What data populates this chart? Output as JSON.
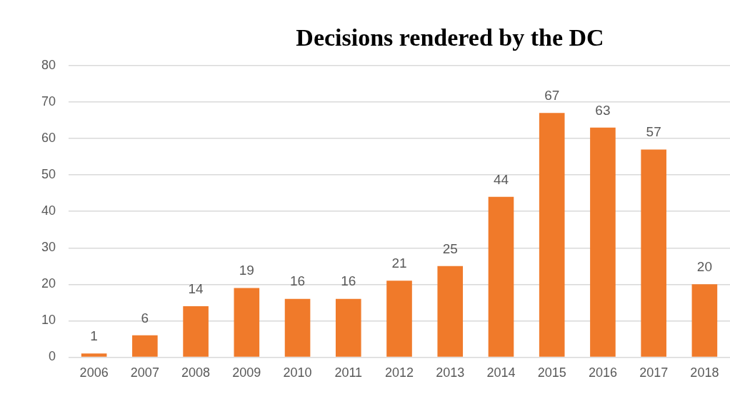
{
  "chart_data": {
    "type": "bar",
    "title": "Decisions rendered by the DC",
    "categories": [
      "2006",
      "2007",
      "2008",
      "2009",
      "2010",
      "2011",
      "2012",
      "2013",
      "2014",
      "2015",
      "2016",
      "2017",
      "2018"
    ],
    "values": [
      1,
      6,
      14,
      19,
      16,
      16,
      21,
      25,
      44,
      67,
      63,
      57,
      20
    ],
    "color": "#f07a2a",
    "ylim": [
      0,
      80
    ],
    "yticks": [
      0,
      10,
      20,
      30,
      40,
      50,
      60,
      70,
      80
    ],
    "grid": "y",
    "data_labels": true
  }
}
